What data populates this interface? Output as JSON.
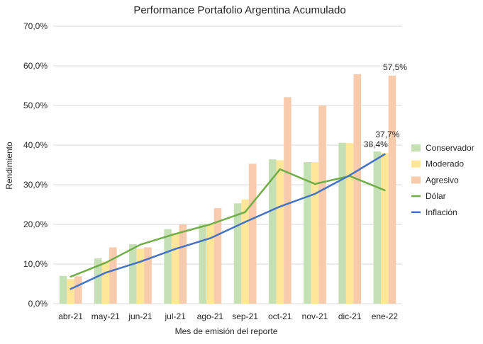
{
  "chart_data": {
    "type": "bar",
    "title": "Performance Portafolio Argentina Acumulado",
    "xlabel": "Mes de emisión del reporte",
    "ylabel": "Rendimiento",
    "categories": [
      "abr-21",
      "may-21",
      "jun-21",
      "jul-21",
      "ago-21",
      "sep-21",
      "oct-21",
      "nov-21",
      "dic-21",
      "ene-22"
    ],
    "ylim": [
      0,
      70
    ],
    "yticks": [
      0,
      10,
      20,
      30,
      40,
      50,
      60,
      70
    ],
    "ytick_labels": [
      "0,0%",
      "10,0%",
      "20,0%",
      "30,0%",
      "40,0%",
      "50,0%",
      "60,0%",
      "70,0%"
    ],
    "grid": true,
    "legend_position": "right",
    "series": [
      {
        "name": "Conservador",
        "type": "bar",
        "color": "#c5e0b4",
        "values": [
          7.0,
          11.4,
          15.0,
          18.8,
          20.1,
          25.3,
          36.4,
          35.7,
          40.6,
          38.4
        ]
      },
      {
        "name": "Moderado",
        "type": "bar",
        "color": "#ffe699",
        "values": [
          6.2,
          10.6,
          13.9,
          17.8,
          20.0,
          26.3,
          36.2,
          35.7,
          40.5,
          38.0
        ]
      },
      {
        "name": "Agresivo",
        "type": "bar",
        "color": "#f8cbad",
        "values": [
          6.9,
          14.2,
          14.2,
          20.0,
          24.1,
          35.3,
          52.1,
          50.0,
          57.9,
          57.5
        ]
      },
      {
        "name": "Dólar",
        "type": "line",
        "color": "#70ad47",
        "values": [
          6.8,
          10.3,
          14.9,
          17.6,
          20.0,
          23.1,
          33.9,
          30.2,
          32.2,
          28.6
        ]
      },
      {
        "name": "Inflación",
        "type": "line",
        "color": "#4472c4",
        "values": [
          3.7,
          7.8,
          10.6,
          13.8,
          16.5,
          20.6,
          24.5,
          27.7,
          32.4,
          37.7
        ]
      }
    ],
    "annotations": [
      {
        "text": "57,5%",
        "series": "Agresivo",
        "category": "ene-22",
        "value": 57.5
      },
      {
        "text": "38,4%",
        "series": "Conservador",
        "category": "ene-22",
        "value": 38.4
      },
      {
        "text": "37,7%",
        "series": "Inflación",
        "category": "ene-22",
        "value": 37.7
      }
    ]
  }
}
